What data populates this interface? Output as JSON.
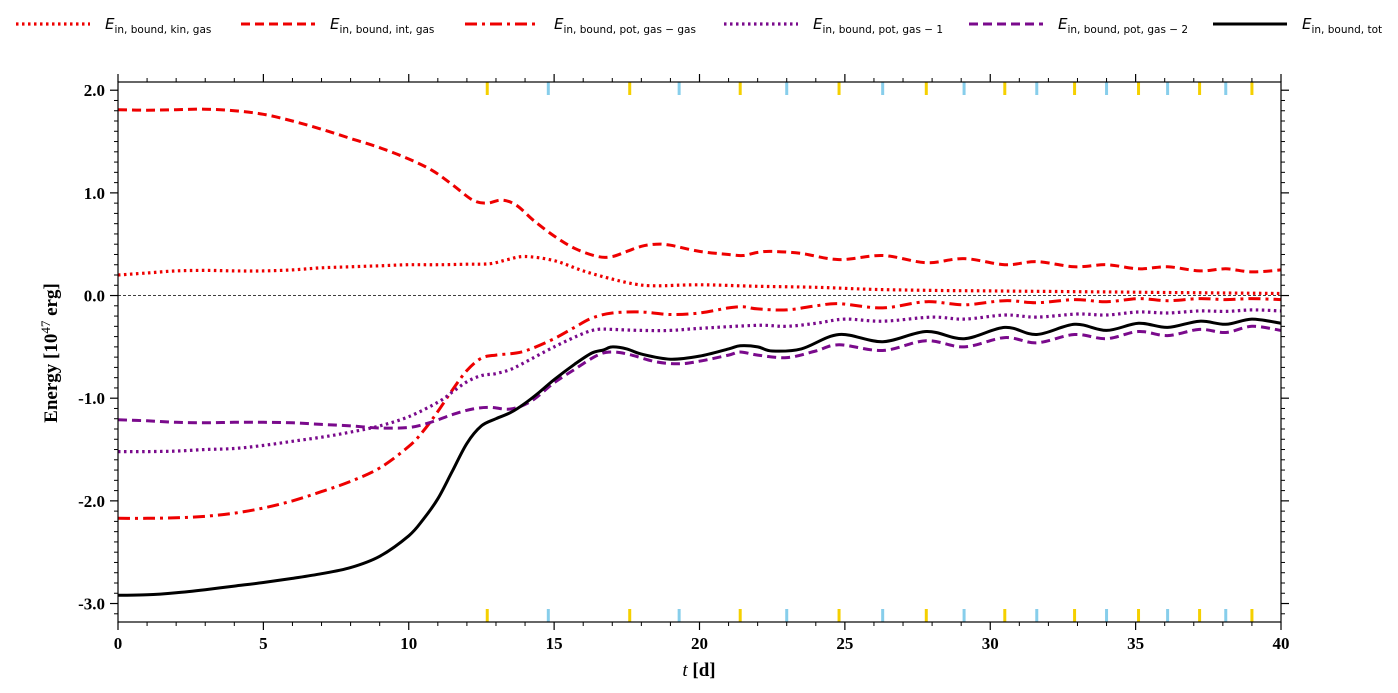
{
  "chart_data": {
    "type": "line",
    "xlabel": {
      "var": "t",
      "unit": " [d]"
    },
    "ylabel": {
      "text": "Energy [10",
      "exp": "47",
      "unit": " erg]"
    },
    "xlim": [
      0,
      40
    ],
    "ylim": [
      -3.18,
      2.08
    ],
    "x_ticks": [
      0,
      5,
      10,
      15,
      20,
      25,
      30,
      35,
      40
    ],
    "x_tick_labels": [
      "0",
      "5",
      "10",
      "15",
      "20",
      "25",
      "30",
      "35",
      "40"
    ],
    "y_ticks": [
      -3.0,
      -2.0,
      -1.0,
      0.0,
      1.0,
      2.0
    ],
    "y_tick_labels": [
      "-3.0",
      "-2.0",
      "-1.0",
      "0.0",
      "1.0",
      "2.0"
    ],
    "grid": false,
    "zero_line": true,
    "legend_placement": "top, outside plot area",
    "event_markers": {
      "yellow": [
        12.7,
        17.6,
        21.4,
        24.8,
        27.8,
        30.5,
        32.9,
        35.1,
        37.2,
        39.0
      ],
      "blue": [
        14.8,
        19.3,
        23.0,
        26.3,
        29.1,
        31.6,
        34.0,
        36.1,
        38.1
      ],
      "colors": {
        "yellow": "#f5d000",
        "blue": "#87ceeb"
      }
    },
    "series": [
      {
        "name": "E_in,bound,kin,gas",
        "label_main": "E",
        "label_sub": "in, bound, kin, gas",
        "color": "#ee0000",
        "style": "dotted",
        "points": [
          [
            0,
            0.2
          ],
          [
            1,
            0.22
          ],
          [
            2,
            0.24
          ],
          [
            3,
            0.245
          ],
          [
            4,
            0.24
          ],
          [
            5,
            0.24
          ],
          [
            6,
            0.25
          ],
          [
            7,
            0.27
          ],
          [
            8,
            0.28
          ],
          [
            9,
            0.29
          ],
          [
            10,
            0.3
          ],
          [
            11,
            0.3
          ],
          [
            12,
            0.305
          ],
          [
            12.8,
            0.31
          ],
          [
            13.4,
            0.35
          ],
          [
            14,
            0.38
          ],
          [
            15,
            0.34
          ],
          [
            16,
            0.24
          ],
          [
            17,
            0.16
          ],
          [
            17.8,
            0.11
          ],
          [
            18.5,
            0.095
          ],
          [
            20,
            0.105
          ],
          [
            22,
            0.09
          ],
          [
            24,
            0.08
          ],
          [
            26,
            0.06
          ],
          [
            28,
            0.05
          ],
          [
            30,
            0.045
          ],
          [
            32,
            0.04
          ],
          [
            34,
            0.035
          ],
          [
            36,
            0.03
          ],
          [
            38,
            0.025
          ],
          [
            40,
            0.02
          ]
        ]
      },
      {
        "name": "E_in,bound,int,gas",
        "label_main": "E",
        "label_sub": "in, bound, int, gas",
        "color": "#ee0000",
        "style": "dashed",
        "points": [
          [
            0,
            1.81
          ],
          [
            1,
            1.805
          ],
          [
            2,
            1.81
          ],
          [
            3,
            1.815
          ],
          [
            4,
            1.8
          ],
          [
            5,
            1.765
          ],
          [
            6,
            1.7
          ],
          [
            7,
            1.62
          ],
          [
            8,
            1.53
          ],
          [
            9,
            1.44
          ],
          [
            10,
            1.33
          ],
          [
            10.8,
            1.22
          ],
          [
            11.5,
            1.08
          ],
          [
            12.2,
            0.93
          ],
          [
            12.7,
            0.9
          ],
          [
            13.2,
            0.93
          ],
          [
            13.7,
            0.88
          ],
          [
            14.3,
            0.73
          ],
          [
            15,
            0.58
          ],
          [
            15.7,
            0.46
          ],
          [
            16.5,
            0.38
          ],
          [
            17,
            0.38
          ],
          [
            17.5,
            0.43
          ],
          [
            18,
            0.48
          ],
          [
            18.5,
            0.5
          ],
          [
            19,
            0.49
          ],
          [
            20,
            0.43
          ],
          [
            21,
            0.4
          ],
          [
            21.5,
            0.39
          ],
          [
            22,
            0.42
          ],
          [
            22.5,
            0.43
          ],
          [
            23.5,
            0.41
          ],
          [
            24.8,
            0.35
          ],
          [
            26.3,
            0.39
          ],
          [
            27.8,
            0.32
          ],
          [
            29.1,
            0.36
          ],
          [
            30.5,
            0.3
          ],
          [
            31.6,
            0.33
          ],
          [
            32.9,
            0.28
          ],
          [
            34,
            0.3
          ],
          [
            35.1,
            0.26
          ],
          [
            36.1,
            0.28
          ],
          [
            37.2,
            0.24
          ],
          [
            38.1,
            0.26
          ],
          [
            39,
            0.23
          ],
          [
            40,
            0.25
          ]
        ]
      },
      {
        "name": "E_in,bound,pot,gas-gas",
        "label_main": "E",
        "label_sub": "in, bound, pot, gas − gas",
        "color": "#ee0000",
        "style": "dashdot",
        "points": [
          [
            0,
            -2.17
          ],
          [
            1,
            -2.17
          ],
          [
            2,
            -2.165
          ],
          [
            3,
            -2.15
          ],
          [
            4,
            -2.12
          ],
          [
            5,
            -2.07
          ],
          [
            6,
            -2.0
          ],
          [
            7,
            -1.91
          ],
          [
            8,
            -1.81
          ],
          [
            9,
            -1.68
          ],
          [
            10,
            -1.47
          ],
          [
            10.5,
            -1.32
          ],
          [
            11,
            -1.13
          ],
          [
            11.5,
            -0.92
          ],
          [
            12,
            -0.73
          ],
          [
            12.5,
            -0.61
          ],
          [
            13,
            -0.58
          ],
          [
            13.7,
            -0.56
          ],
          [
            14.2,
            -0.52
          ],
          [
            15,
            -0.42
          ],
          [
            15.7,
            -0.31
          ],
          [
            16.3,
            -0.22
          ],
          [
            17,
            -0.17
          ],
          [
            18,
            -0.16
          ],
          [
            19,
            -0.185
          ],
          [
            20,
            -0.17
          ],
          [
            21,
            -0.12
          ],
          [
            21.5,
            -0.11
          ],
          [
            22,
            -0.13
          ],
          [
            23,
            -0.14
          ],
          [
            24,
            -0.1
          ],
          [
            24.8,
            -0.08
          ],
          [
            26.3,
            -0.12
          ],
          [
            27.8,
            -0.06
          ],
          [
            29.1,
            -0.09
          ],
          [
            30.5,
            -0.05
          ],
          [
            31.6,
            -0.07
          ],
          [
            32.9,
            -0.04
          ],
          [
            34,
            -0.06
          ],
          [
            35.1,
            -0.03
          ],
          [
            36.1,
            -0.05
          ],
          [
            37.2,
            -0.03
          ],
          [
            38.1,
            -0.04
          ],
          [
            39,
            -0.03
          ],
          [
            40,
            -0.04
          ]
        ]
      },
      {
        "name": "E_in,bound,pot,gas-1",
        "label_main": "E",
        "label_sub": "in, bound, pot, gas − 1",
        "color": "#7a0a8c",
        "style": "dotted",
        "points": [
          [
            0,
            -1.52
          ],
          [
            1,
            -1.52
          ],
          [
            2,
            -1.515
          ],
          [
            3,
            -1.5
          ],
          [
            4,
            -1.49
          ],
          [
            5,
            -1.46
          ],
          [
            6,
            -1.42
          ],
          [
            7,
            -1.38
          ],
          [
            8,
            -1.33
          ],
          [
            9,
            -1.27
          ],
          [
            10,
            -1.18
          ],
          [
            11,
            -1.04
          ],
          [
            11.5,
            -0.94
          ],
          [
            12,
            -0.84
          ],
          [
            12.5,
            -0.78
          ],
          [
            13,
            -0.76
          ],
          [
            13.5,
            -0.72
          ],
          [
            14,
            -0.65
          ],
          [
            15,
            -0.5
          ],
          [
            16,
            -0.37
          ],
          [
            16.5,
            -0.33
          ],
          [
            17,
            -0.33
          ],
          [
            18,
            -0.34
          ],
          [
            19,
            -0.34
          ],
          [
            20,
            -0.32
          ],
          [
            22,
            -0.29
          ],
          [
            23,
            -0.3
          ],
          [
            24,
            -0.27
          ],
          [
            25,
            -0.23
          ],
          [
            26.3,
            -0.25
          ],
          [
            28,
            -0.21
          ],
          [
            29.1,
            -0.23
          ],
          [
            30.5,
            -0.19
          ],
          [
            31.6,
            -0.21
          ],
          [
            33,
            -0.18
          ],
          [
            34,
            -0.19
          ],
          [
            35.1,
            -0.16
          ],
          [
            36.1,
            -0.17
          ],
          [
            37.2,
            -0.15
          ],
          [
            38.1,
            -0.155
          ],
          [
            39,
            -0.14
          ],
          [
            40,
            -0.15
          ]
        ]
      },
      {
        "name": "E_in,bound,pot,gas-2",
        "label_main": "E",
        "label_sub": "in, bound, pot, gas − 2",
        "color": "#7a0a8c",
        "style": "dashed",
        "points": [
          [
            0,
            -1.21
          ],
          [
            1,
            -1.22
          ],
          [
            2,
            -1.235
          ],
          [
            3,
            -1.24
          ],
          [
            4,
            -1.235
          ],
          [
            5,
            -1.235
          ],
          [
            6,
            -1.24
          ],
          [
            7,
            -1.255
          ],
          [
            8,
            -1.27
          ],
          [
            9,
            -1.29
          ],
          [
            10,
            -1.285
          ],
          [
            10.7,
            -1.24
          ],
          [
            11.5,
            -1.16
          ],
          [
            12.2,
            -1.105
          ],
          [
            12.8,
            -1.09
          ],
          [
            13.5,
            -1.105
          ],
          [
            14.2,
            -1.03
          ],
          [
            15,
            -0.85
          ],
          [
            15.7,
            -0.72
          ],
          [
            16.5,
            -0.58
          ],
          [
            17,
            -0.55
          ],
          [
            17.6,
            -0.575
          ],
          [
            18.5,
            -0.645
          ],
          [
            19.3,
            -0.665
          ],
          [
            20,
            -0.64
          ],
          [
            21,
            -0.58
          ],
          [
            21.4,
            -0.55
          ],
          [
            22,
            -0.58
          ],
          [
            23,
            -0.605
          ],
          [
            24,
            -0.54
          ],
          [
            24.8,
            -0.48
          ],
          [
            26.3,
            -0.535
          ],
          [
            27.8,
            -0.44
          ],
          [
            29.1,
            -0.5
          ],
          [
            30.5,
            -0.41
          ],
          [
            31.6,
            -0.46
          ],
          [
            32.9,
            -0.38
          ],
          [
            34,
            -0.42
          ],
          [
            35.1,
            -0.35
          ],
          [
            36.1,
            -0.39
          ],
          [
            37.2,
            -0.33
          ],
          [
            38.1,
            -0.36
          ],
          [
            39,
            -0.3
          ],
          [
            40,
            -0.34
          ]
        ]
      },
      {
        "name": "E_in,bound,tot",
        "label_main": "E",
        "label_sub": "in, bound, tot",
        "color": "#000000",
        "style": "solid",
        "points": [
          [
            0,
            -2.92
          ],
          [
            1,
            -2.915
          ],
          [
            2,
            -2.895
          ],
          [
            3,
            -2.865
          ],
          [
            4,
            -2.83
          ],
          [
            5,
            -2.795
          ],
          [
            6,
            -2.755
          ],
          [
            7,
            -2.71
          ],
          [
            8,
            -2.65
          ],
          [
            9,
            -2.54
          ],
          [
            10,
            -2.34
          ],
          [
            10.5,
            -2.18
          ],
          [
            11,
            -1.98
          ],
          [
            11.5,
            -1.71
          ],
          [
            12,
            -1.44
          ],
          [
            12.5,
            -1.27
          ],
          [
            13,
            -1.2
          ],
          [
            13.5,
            -1.14
          ],
          [
            14,
            -1.05
          ],
          [
            14.5,
            -0.94
          ],
          [
            15,
            -0.82
          ],
          [
            15.7,
            -0.67
          ],
          [
            16.3,
            -0.56
          ],
          [
            16.7,
            -0.53
          ],
          [
            17,
            -0.5
          ],
          [
            17.5,
            -0.52
          ],
          [
            18,
            -0.57
          ],
          [
            19,
            -0.62
          ],
          [
            20,
            -0.59
          ],
          [
            21,
            -0.52
          ],
          [
            21.4,
            -0.49
          ],
          [
            22,
            -0.5
          ],
          [
            22.5,
            -0.54
          ],
          [
            23.5,
            -0.52
          ],
          [
            24.8,
            -0.38
          ],
          [
            26.3,
            -0.45
          ],
          [
            27.8,
            -0.35
          ],
          [
            29.1,
            -0.42
          ],
          [
            30.5,
            -0.31
          ],
          [
            31.6,
            -0.38
          ],
          [
            32.9,
            -0.28
          ],
          [
            34,
            -0.34
          ],
          [
            35.1,
            -0.27
          ],
          [
            36.1,
            -0.31
          ],
          [
            37.2,
            -0.25
          ],
          [
            38.1,
            -0.28
          ],
          [
            39,
            -0.23
          ],
          [
            40,
            -0.27
          ]
        ]
      }
    ]
  }
}
